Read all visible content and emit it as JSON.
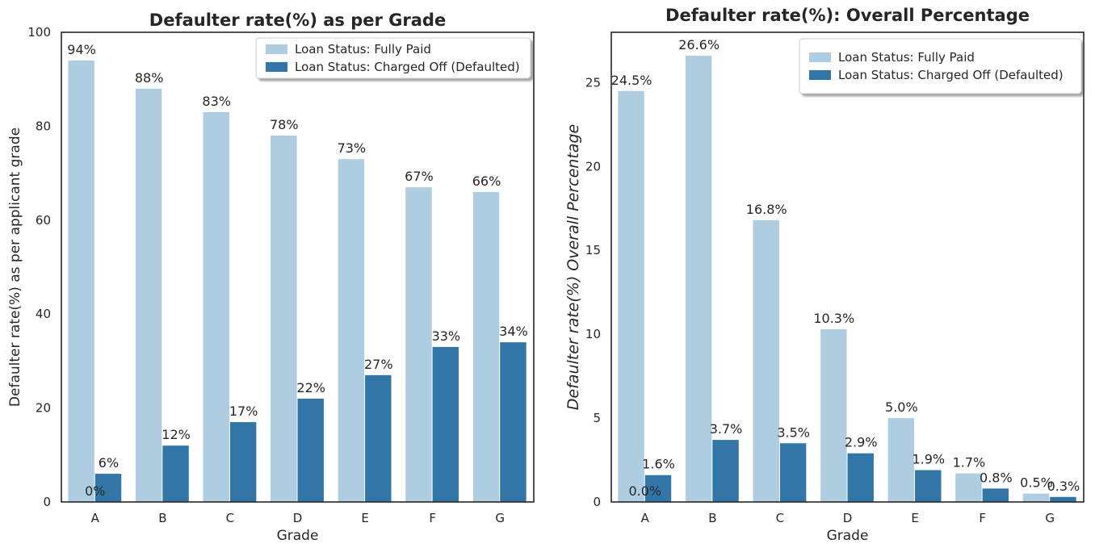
{
  "colors": {
    "fully_paid": "#aecde0",
    "charged_off": "#3176a7",
    "text": "#262626"
  },
  "chart_data": [
    {
      "type": "bar",
      "title": "Defaulter rate(%) as per Grade",
      "xlabel": "Grade",
      "ylabel": "Defaulter rate(%) as per applicant grade",
      "ylim": [
        0,
        100
      ],
      "yticks": [
        0,
        20,
        40,
        60,
        80,
        100
      ],
      "categories": [
        "A",
        "B",
        "C",
        "D",
        "E",
        "F",
        "G"
      ],
      "legend_position": "top-right",
      "series": [
        {
          "name": "Loan Status: Fully Paid",
          "values": [
            94,
            88,
            83,
            78,
            73,
            67,
            66
          ],
          "labels": [
            "94%",
            "88%",
            "83%",
            "78%",
            "73%",
            "67%",
            "66%"
          ]
        },
        {
          "name": "Loan Status: Charged Off (Defaulted)",
          "values": [
            6,
            12,
            17,
            22,
            27,
            33,
            34
          ],
          "labels": [
            "6%",
            "12%",
            "17%",
            "22%",
            "27%",
            "33%",
            "34%"
          ]
        }
      ],
      "annotations": [
        {
          "text": "0%",
          "category": "A",
          "value": 0
        }
      ]
    },
    {
      "type": "bar",
      "title": "Defaulter rate(%): Overall Percentage",
      "xlabel": "Grade",
      "ylabel": "Defaulter rate(%) Overall Percentage",
      "ylim": [
        0,
        28
      ],
      "yticks": [
        0,
        5,
        10,
        15,
        20,
        25
      ],
      "categories": [
        "A",
        "B",
        "C",
        "D",
        "E",
        "F",
        "G"
      ],
      "legend_position": "top-right",
      "series": [
        {
          "name": "Loan Status: Fully Paid",
          "values": [
            24.5,
            26.6,
            16.8,
            10.3,
            5.0,
            1.7,
            0.5
          ],
          "labels": [
            "24.5%",
            "26.6%",
            "16.8%",
            "10.3%",
            "5.0%",
            "1.7%",
            "0.5%"
          ]
        },
        {
          "name": "Loan Status: Charged Off (Defaulted)",
          "values": [
            1.6,
            3.7,
            3.5,
            2.9,
            1.9,
            0.8,
            0.3
          ],
          "labels": [
            "1.6%",
            "3.7%",
            "3.5%",
            "2.9%",
            "1.9%",
            "0.8%",
            "0.3%"
          ]
        }
      ],
      "annotations": [
        {
          "text": "0.0%",
          "category": "A",
          "value": 0
        }
      ]
    }
  ]
}
